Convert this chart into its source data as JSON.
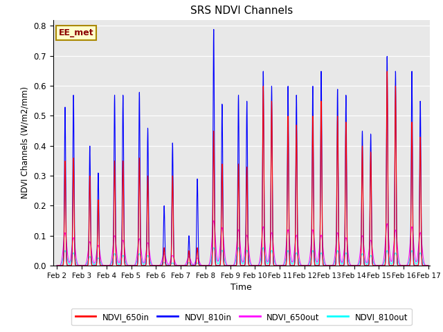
{
  "title": "SRS NDVI Channels",
  "xlabel": "Time",
  "ylabel": "NDVI Channels (W/m2/mm)",
  "annotation": "EE_met",
  "ylim": [
    0.0,
    0.82
  ],
  "background_color": "#e8e8e8",
  "legend_labels": [
    "NDVI_650in",
    "NDVI_810in",
    "NDVI_650out",
    "NDVI_810out"
  ],
  "legend_colors": [
    "red",
    "blue",
    "magenta",
    "cyan"
  ],
  "days": [
    {
      "day": 2,
      "p1_810": 0.53,
      "p2_810": 0.57,
      "p1_650": 0.35,
      "p2_650": 0.36,
      "out650": 0.11,
      "out810": 0.05
    },
    {
      "day": 3,
      "p1_810": 0.4,
      "p2_810": 0.31,
      "p1_650": 0.3,
      "p2_650": 0.22,
      "out650": 0.08,
      "out810": 0.03
    },
    {
      "day": 4,
      "p1_810": 0.57,
      "p2_810": 0.57,
      "p1_650": 0.35,
      "p2_650": 0.35,
      "out650": 0.1,
      "out810": 0.04
    },
    {
      "day": 5,
      "p1_810": 0.58,
      "p2_810": 0.46,
      "p1_650": 0.36,
      "p2_650": 0.3,
      "out650": 0.09,
      "out810": 0.04
    },
    {
      "day": 6,
      "p1_810": 0.2,
      "p2_810": 0.41,
      "p1_650": 0.06,
      "p2_650": 0.3,
      "out650": 0.04,
      "out810": 0.01
    },
    {
      "day": 7,
      "p1_810": 0.1,
      "p2_810": 0.29,
      "p1_650": 0.05,
      "p2_650": 0.06,
      "out650": 0.03,
      "out810": 0.01
    },
    {
      "day": 8,
      "p1_810": 0.79,
      "p2_810": 0.54,
      "p1_650": 0.45,
      "p2_650": 0.34,
      "out650": 0.15,
      "out810": 0.06
    },
    {
      "day": 9,
      "p1_810": 0.57,
      "p2_810": 0.55,
      "p1_650": 0.34,
      "p2_650": 0.33,
      "out650": 0.12,
      "out810": 0.06
    },
    {
      "day": 10,
      "p1_810": 0.65,
      "p2_810": 0.6,
      "p1_650": 0.6,
      "p2_650": 0.55,
      "out650": 0.13,
      "out810": 0.06
    },
    {
      "day": 11,
      "p1_810": 0.6,
      "p2_810": 0.57,
      "p1_650": 0.5,
      "p2_650": 0.47,
      "out650": 0.12,
      "out810": 0.05
    },
    {
      "day": 12,
      "p1_810": 0.6,
      "p2_810": 0.65,
      "p1_650": 0.5,
      "p2_650": 0.55,
      "out650": 0.12,
      "out810": 0.05
    },
    {
      "day": 13,
      "p1_810": 0.59,
      "p2_810": 0.57,
      "p1_650": 0.5,
      "p2_650": 0.48,
      "out650": 0.11,
      "out810": 0.05
    },
    {
      "day": 14,
      "p1_810": 0.45,
      "p2_810": 0.44,
      "p1_650": 0.4,
      "p2_650": 0.38,
      "out650": 0.1,
      "out810": 0.04
    },
    {
      "day": 15,
      "p1_810": 0.7,
      "p2_810": 0.65,
      "p1_650": 0.65,
      "p2_650": 0.6,
      "out650": 0.14,
      "out810": 0.05
    },
    {
      "day": 16,
      "p1_810": 0.65,
      "p2_810": 0.55,
      "p1_650": 0.48,
      "p2_650": 0.43,
      "out650": 0.13,
      "out810": 0.05
    }
  ],
  "xtick_labels": [
    "Feb 2",
    "Feb 3",
    "Feb 4",
    "Feb 5",
    "Feb 6",
    "Feb 7",
    "Feb 8",
    "Feb 9",
    "Feb 10",
    "Feb 11",
    "Feb 12",
    "Feb 13",
    "Feb 14",
    "Feb 15",
    "Feb 16",
    "Feb 17"
  ]
}
